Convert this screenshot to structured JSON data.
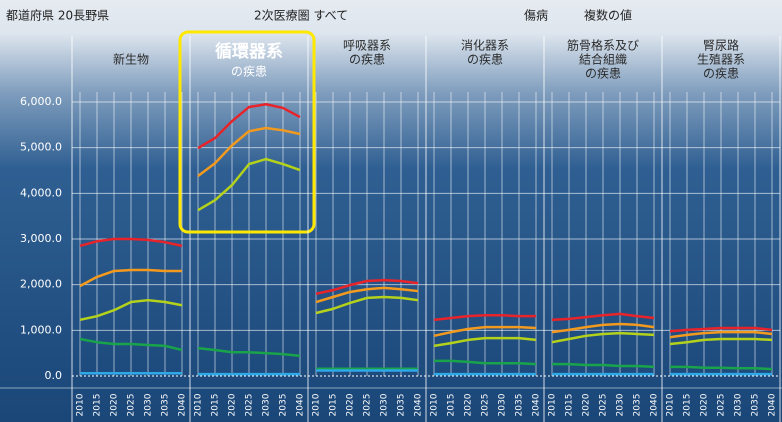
{
  "header": {
    "region_label": "都道府県 20長野県",
    "area_label": "2次医療圏 すべて",
    "disease_label": "傷病",
    "measure_label": "複数の値"
  },
  "chart_data": {
    "type": "line",
    "x": [
      2010,
      2015,
      2020,
      2025,
      2030,
      2035,
      2040
    ],
    "ylim": [
      0,
      6000
    ],
    "yticks": [
      {
        "value": 0,
        "label": "0.0"
      },
      {
        "value": 1000,
        "label": "1,000.0"
      },
      {
        "value": 2000,
        "label": "2,000.0"
      },
      {
        "value": 3000,
        "label": "3,000.0"
      },
      {
        "value": 4000,
        "label": "4,000.0"
      },
      {
        "value": 5000,
        "label": "5,000.0"
      },
      {
        "value": 6000,
        "label": "6,000.0"
      }
    ],
    "grid": true,
    "panels": [
      {
        "title": [
          "新生物"
        ],
        "series": [
          {
            "color": "#e8232a",
            "values": [
              2850,
              2950,
              3000,
              3000,
              2980,
              2930,
              2850
            ]
          },
          {
            "color": "#f39a1e",
            "values": [
              1970,
              2170,
              2300,
              2320,
              2320,
              2300,
              2300
            ]
          },
          {
            "color": "#b5d21b",
            "values": [
              1230,
              1310,
              1440,
              1620,
              1660,
              1620,
              1550
            ]
          },
          {
            "color": "#19a34a",
            "values": [
              810,
              740,
              700,
              700,
              680,
              660,
              570
            ]
          },
          {
            "color": "#2ea8e6",
            "values": [
              60,
              60,
              60,
              60,
              60,
              60,
              60
            ]
          }
        ]
      },
      {
        "title": [
          "循環器系",
          "の疾患"
        ],
        "highlighted": true,
        "series": [
          {
            "color": "#e8232a",
            "values": [
              4990,
              5210,
              5580,
              5890,
              5950,
              5870,
              5670
            ]
          },
          {
            "color": "#f39a1e",
            "values": [
              4380,
              4660,
              5050,
              5360,
              5430,
              5380,
              5300
            ]
          },
          {
            "color": "#b5d21b",
            "values": [
              3630,
              3850,
              4180,
              4640,
              4750,
              4640,
              4510
            ]
          },
          {
            "color": "#19a34a",
            "values": [
              610,
              570,
              520,
              520,
              500,
              480,
              440
            ]
          },
          {
            "color": "#2ea8e6",
            "values": [
              40,
              40,
              40,
              40,
              40,
              40,
              40
            ]
          }
        ]
      },
      {
        "title": [
          "呼吸器系",
          "の疾患"
        ],
        "series": [
          {
            "color": "#e8232a",
            "values": [
              1800,
              1880,
              1990,
              2080,
              2100,
              2080,
              2030
            ]
          },
          {
            "color": "#f39a1e",
            "values": [
              1620,
              1730,
              1840,
              1900,
              1930,
              1900,
              1860
            ]
          },
          {
            "color": "#b5d21b",
            "values": [
              1380,
              1470,
              1600,
              1710,
              1730,
              1710,
              1660
            ]
          },
          {
            "color": "#19a34a",
            "values": [
              160,
              160,
              160,
              160,
              160,
              160,
              160
            ]
          },
          {
            "color": "#2ea8e6",
            "values": [
              120,
              120,
              120,
              120,
              120,
              120,
              120
            ]
          }
        ]
      },
      {
        "title": [
          "消化器系",
          "の疾患"
        ],
        "series": [
          {
            "color": "#e8232a",
            "values": [
              1230,
              1270,
              1310,
              1330,
              1330,
              1310,
              1310
            ]
          },
          {
            "color": "#f39a1e",
            "values": [
              880,
              960,
              1030,
              1070,
              1070,
              1070,
              1050
            ]
          },
          {
            "color": "#b5d21b",
            "values": [
              660,
              720,
              790,
              830,
              830,
              830,
              790
            ]
          },
          {
            "color": "#19a34a",
            "values": [
              330,
              330,
              310,
              280,
              280,
              280,
              260
            ]
          },
          {
            "color": "#2ea8e6",
            "values": [
              40,
              40,
              40,
              40,
              40,
              40,
              40
            ]
          }
        ]
      },
      {
        "title": [
          "筋骨格系及び",
          "結合組織",
          "の疾患"
        ],
        "series": [
          {
            "color": "#e8232a",
            "values": [
              1230,
              1250,
              1290,
              1330,
              1360,
              1310,
              1270
            ]
          },
          {
            "color": "#f39a1e",
            "values": [
              960,
              1010,
              1070,
              1120,
              1140,
              1120,
              1070
            ]
          },
          {
            "color": "#b5d21b",
            "values": [
              740,
              810,
              880,
              920,
              940,
              920,
              900
            ]
          },
          {
            "color": "#19a34a",
            "values": [
              260,
              260,
              240,
              240,
              220,
              220,
              200
            ]
          },
          {
            "color": "#2ea8e6",
            "values": [
              40,
              40,
              40,
              40,
              40,
              40,
              40
            ]
          }
        ]
      },
      {
        "title": [
          "腎尿路",
          "生殖器系",
          "の疾患"
        ],
        "series": [
          {
            "color": "#e8232a",
            "values": [
              980,
              1010,
              1030,
              1050,
              1050,
              1050,
              1010
            ]
          },
          {
            "color": "#f39a1e",
            "values": [
              850,
              900,
              940,
              960,
              960,
              960,
              920
            ]
          },
          {
            "color": "#b5d21b",
            "values": [
              700,
              740,
              790,
              810,
              810,
              810,
              790
            ]
          },
          {
            "color": "#19a34a",
            "values": [
              200,
              200,
              180,
              180,
              170,
              170,
              150
            ]
          },
          {
            "color": "#2ea8e6",
            "values": [
              40,
              40,
              40,
              40,
              40,
              40,
              40
            ]
          }
        ]
      }
    ]
  }
}
